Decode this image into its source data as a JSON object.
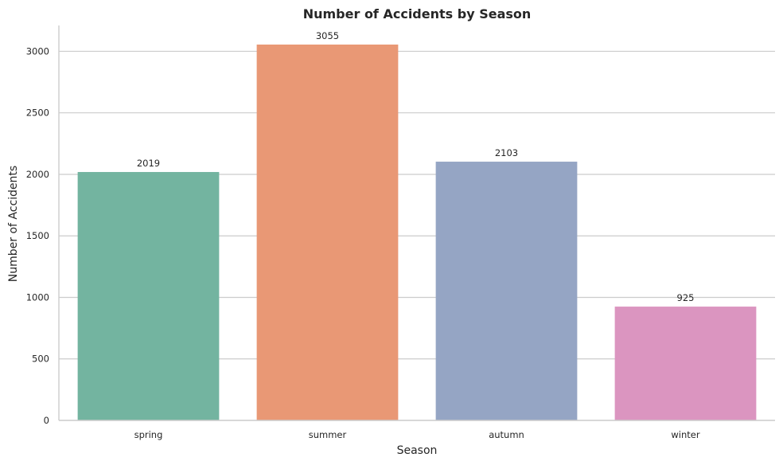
{
  "chart_data": {
    "type": "bar",
    "title": "Number of Accidents by Season",
    "xlabel": "Season",
    "ylabel": "Number of Accidents",
    "categories": [
      "spring",
      "summer",
      "autumn",
      "winter"
    ],
    "values": [
      2019,
      3055,
      2103,
      925
    ],
    "data_labels": [
      "2019",
      "3055",
      "2103",
      "925"
    ],
    "colors": [
      "#73b4a0",
      "#e99875",
      "#95a5c4",
      "#db95c0"
    ],
    "ylim": [
      0,
      3210
    ],
    "yticks": [
      0,
      500,
      1000,
      1500,
      2000,
      2500,
      3000
    ],
    "ytick_labels": [
      "0",
      "500",
      "1000",
      "1500",
      "2000",
      "2500",
      "3000"
    ],
    "grid": "horizontal",
    "legend": "none"
  }
}
